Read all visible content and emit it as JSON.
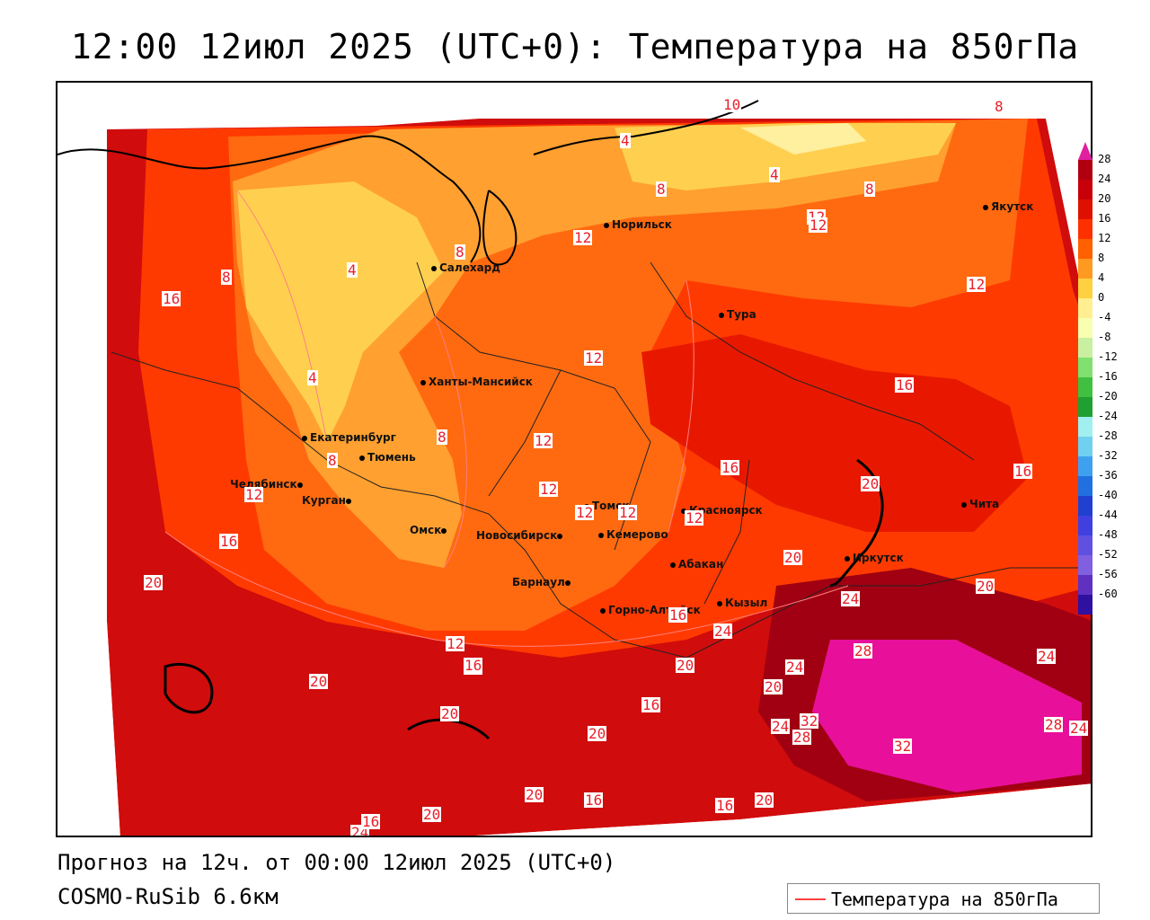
{
  "title": "12:00 12июл 2025 (UTC+0): Температура на 850гПа",
  "footer": {
    "forecast": "Прогноз на 12ч. от 00:00 12июл 2025 (UTC+0)",
    "model": "COSMO-RuSib 6.6км"
  },
  "legend": {
    "label": "Температура на 850гПа",
    "line_color": "#ff4040"
  },
  "colorbar": {
    "labels": [
      "28",
      "24",
      "20",
      "16",
      "12",
      "8",
      "4",
      "0",
      "-4",
      "-8",
      "-12",
      "-16",
      "-20",
      "-24",
      "-28",
      "-32",
      "-36",
      "-40",
      "-44",
      "-48",
      "-52",
      "-56",
      "-60"
    ],
    "colors": [
      "#b00010",
      "#c8000a",
      "#e01000",
      "#ff3000",
      "#ff6000",
      "#ff9a20",
      "#ffd040",
      "#ffef90",
      "#f8ffb0",
      "#c8f0a0",
      "#80e070",
      "#40c040",
      "#20a030",
      "#a0f0f0",
      "#70d0f0",
      "#40a0f0",
      "#2070e0",
      "#2040d0",
      "#4040e0",
      "#6050e0",
      "#8060e0",
      "#6030c0",
      "#3010a0"
    ],
    "top_color": "#e020a0"
  },
  "cities": [
    {
      "name": "Якутск"
    },
    {
      "name": "Норильск"
    },
    {
      "name": "Салехард"
    },
    {
      "name": "Тура"
    },
    {
      "name": "Ханты-Мансийск"
    },
    {
      "name": "Екатеринбург"
    },
    {
      "name": "Тюмень"
    },
    {
      "name": "Челябинск"
    },
    {
      "name": "Курган"
    },
    {
      "name": "Омск"
    },
    {
      "name": "Томск"
    },
    {
      "name": "Новосибирск"
    },
    {
      "name": "Кемерово"
    },
    {
      "name": "Красноярск"
    },
    {
      "name": "Абакан"
    },
    {
      "name": "Барнаул"
    },
    {
      "name": "Иркутск"
    },
    {
      "name": "Чита"
    },
    {
      "name": "Кызыл"
    },
    {
      "name": "Горно-Алтайск"
    }
  ],
  "contour_labels": [
    "10",
    "8",
    "4",
    "8",
    "8",
    "12",
    "4",
    "8",
    "12",
    "12",
    "8",
    "16",
    "4",
    "12",
    "12",
    "4",
    "8",
    "12",
    "16",
    "12",
    "16",
    "8",
    "12",
    "12",
    "16",
    "20",
    "16",
    "12",
    "12",
    "16",
    "12",
    "20",
    "24",
    "20",
    "12",
    "16",
    "20",
    "20",
    "24",
    "28",
    "24",
    "16",
    "20",
    "24",
    "20",
    "24",
    "32",
    "28",
    "32",
    "20",
    "20",
    "16",
    "20",
    "16",
    "20",
    "20",
    "28",
    "24",
    "24",
    "16"
  ]
}
